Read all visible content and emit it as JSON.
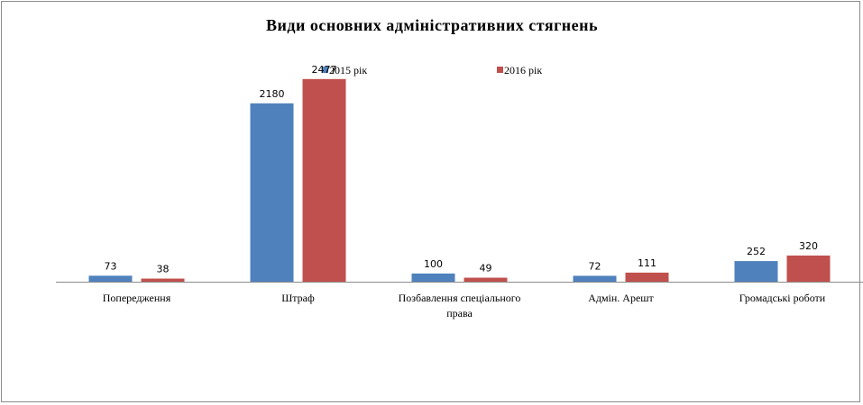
{
  "chart_data": {
    "type": "bar",
    "title": "Види основних адміністративних стягнень",
    "categories": [
      [
        "Попередження"
      ],
      [
        "Штраф"
      ],
      [
        "Позбавлення спеціального",
        "права"
      ],
      [
        "Адмін. Арешт"
      ],
      [
        "Громадські роботи"
      ]
    ],
    "series": [
      {
        "name": "2015 рік",
        "color": "#4f81bd",
        "values": [
          73,
          2180,
          100,
          72,
          252
        ]
      },
      {
        "name": "2016 рік",
        "color": "#c0504d",
        "values": [
          38,
          2477,
          49,
          111,
          320
        ]
      }
    ],
    "ylim": [
      0,
      2750
    ],
    "xlabel": "",
    "ylabel": "",
    "grid": false,
    "legend_position": "top"
  }
}
